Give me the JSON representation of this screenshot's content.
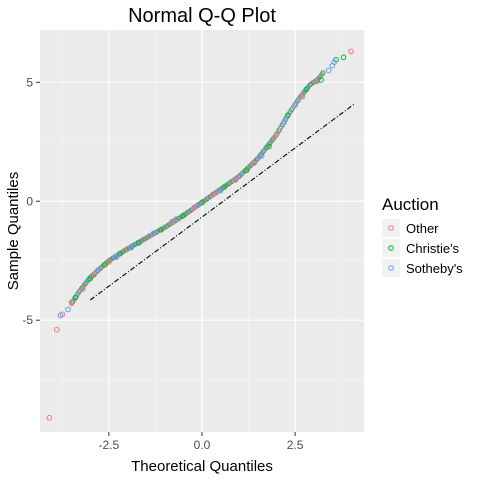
{
  "chart_data": {
    "type": "scatter",
    "title": "Normal Q-Q Plot",
    "xlabel": "Theoretical Quantiles",
    "ylabel": "Sample Quantiles",
    "xlim": [
      -4.35,
      4.35
    ],
    "ylim": [
      -9.7,
      7.2
    ],
    "xticks": [
      -2.5,
      0.0,
      2.5
    ],
    "xtick_labels": [
      "-2.5",
      "0.0",
      "2.5"
    ],
    "yticks": [
      -5,
      0,
      5
    ],
    "ytick_labels": [
      "-5",
      "0",
      "5"
    ],
    "grid": true,
    "legend": {
      "title": "Auction",
      "position": "right",
      "entries": [
        {
          "label": "Other",
          "color": "#F8766D"
        },
        {
          "label": "Christie's",
          "color": "#00BA38"
        },
        {
          "label": "Sotheby's",
          "color": "#619CFF"
        }
      ]
    },
    "reference_line": {
      "x": [
        -3.0,
        4.1
      ],
      "y": [
        -4.15,
        4.1
      ],
      "style": "dashdot",
      "color": "#000000"
    },
    "curve": {
      "x": [
        -4.1,
        -3.9,
        -3.7,
        -3.5,
        -3.3,
        -3.0,
        -2.5,
        -2.0,
        -1.5,
        -1.0,
        -0.5,
        0.0,
        0.5,
        1.0,
        1.5,
        2.0,
        2.3,
        2.6,
        2.9,
        3.1,
        3.3,
        3.6,
        4.0
      ],
      "y": [
        -9.1,
        -5.4,
        -4.75,
        -4.3,
        -3.8,
        -3.2,
        -2.5,
        -2.0,
        -1.55,
        -1.1,
        -0.6,
        -0.05,
        0.5,
        1.05,
        1.8,
        2.8,
        3.6,
        4.3,
        4.9,
        5.1,
        5.5,
        5.8,
        6.3
      ]
    },
    "series": [
      {
        "name": "Other",
        "color": "#F8766D",
        "values": [
          [
            -4.1,
            -9.1
          ],
          [
            -3.9,
            -5.4
          ],
          [
            -3.75,
            -4.75
          ],
          [
            -3.5,
            -4.25
          ],
          [
            -3.2,
            -3.7
          ],
          [
            -2.9,
            -3.1
          ],
          [
            -2.5,
            -2.55
          ],
          [
            -2.0,
            -2.0
          ],
          [
            -1.4,
            -1.45
          ],
          [
            -0.8,
            -0.85
          ],
          [
            -0.2,
            -0.25
          ],
          [
            0.3,
            0.3
          ],
          [
            0.9,
            0.9
          ],
          [
            1.4,
            1.6
          ],
          [
            2.0,
            2.8
          ],
          [
            2.7,
            4.4
          ],
          [
            3.1,
            5.05
          ],
          [
            4.0,
            6.3
          ]
        ]
      },
      {
        "name": "Christie's",
        "color": "#00BA38",
        "values": [
          [
            -3.4,
            -4.05
          ],
          [
            -3.0,
            -3.25
          ],
          [
            -2.6,
            -2.65
          ],
          [
            -2.2,
            -2.2
          ],
          [
            -1.7,
            -1.75
          ],
          [
            -1.1,
            -1.2
          ],
          [
            -0.5,
            -0.6
          ],
          [
            0.0,
            -0.05
          ],
          [
            0.6,
            0.6
          ],
          [
            1.2,
            1.3
          ],
          [
            1.8,
            2.3
          ],
          [
            2.3,
            3.6
          ],
          [
            2.8,
            4.7
          ],
          [
            3.2,
            5.1
          ],
          [
            3.6,
            5.95
          ],
          [
            3.8,
            6.05
          ]
        ]
      },
      {
        "name": "Sotheby's",
        "color": "#619CFF",
        "values": [
          [
            -3.8,
            -4.8
          ],
          [
            -3.6,
            -4.55
          ],
          [
            -2.8,
            -2.9
          ],
          [
            -2.3,
            -2.35
          ],
          [
            -1.9,
            -1.95
          ],
          [
            -1.3,
            -1.35
          ],
          [
            -0.7,
            -0.75
          ],
          [
            -0.1,
            -0.15
          ],
          [
            0.5,
            0.45
          ],
          [
            1.0,
            1.05
          ],
          [
            1.6,
            1.9
          ],
          [
            2.2,
            3.3
          ],
          [
            2.5,
            4.05
          ],
          [
            3.4,
            5.5
          ],
          [
            3.5,
            5.7
          ],
          [
            3.55,
            5.85
          ]
        ]
      }
    ]
  }
}
